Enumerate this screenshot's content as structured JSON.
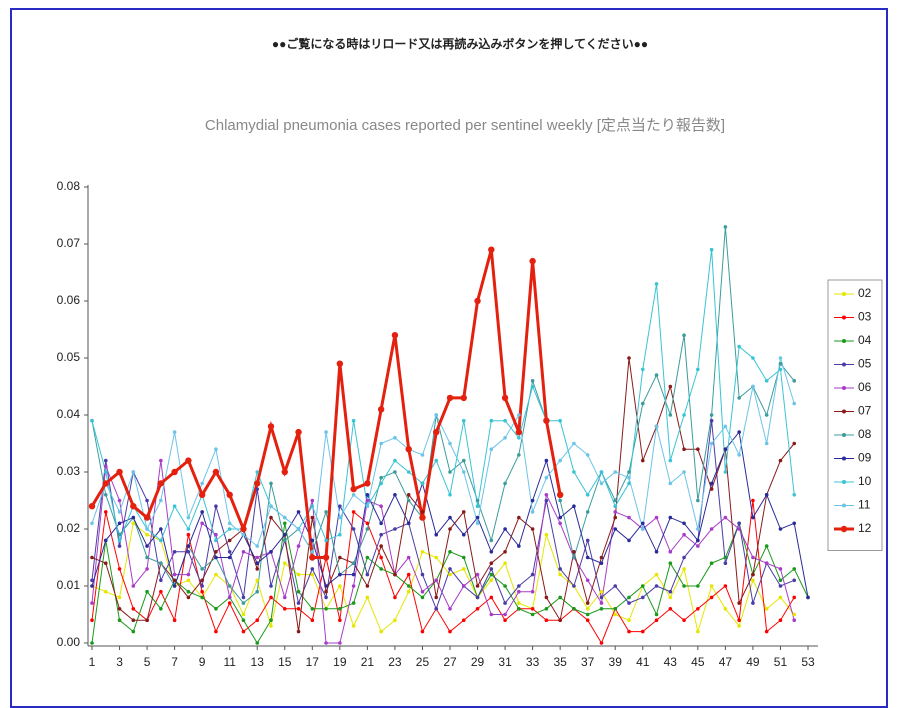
{
  "header": {
    "notice": "●●ご覧になる時はリロード又は再読み込みボタンを押してください●●"
  },
  "chart_data": {
    "type": "line",
    "title": "Chlamydial pneumonia cases reported per sentinel weekly [定点当たり報告数]",
    "x": [
      1,
      2,
      3,
      4,
      5,
      6,
      7,
      8,
      9,
      10,
      11,
      12,
      13,
      14,
      15,
      16,
      17,
      18,
      19,
      20,
      21,
      22,
      23,
      24,
      25,
      26,
      27,
      28,
      29,
      30,
      31,
      32,
      33,
      34,
      35,
      36,
      37,
      38,
      39,
      40,
      41,
      42,
      43,
      44,
      45,
      46,
      47,
      48,
      49,
      50,
      51,
      52,
      53
    ],
    "xlim": [
      1,
      53
    ],
    "xticks": [
      1,
      3,
      5,
      7,
      9,
      11,
      13,
      15,
      17,
      19,
      21,
      23,
      25,
      27,
      29,
      31,
      33,
      35,
      37,
      39,
      41,
      43,
      45,
      47,
      49,
      51,
      53
    ],
    "ylim": [
      0,
      0.08
    ],
    "yticks": [
      {
        "value": 0,
        "label": "0.00"
      },
      {
        "value": 0.01,
        "label": "0.01"
      },
      {
        "value": 0.02,
        "label": "0.02"
      },
      {
        "value": 0.03,
        "label": "0.03"
      },
      {
        "value": 0.04,
        "label": "0.04"
      },
      {
        "value": 0.05,
        "label": "0.05"
      },
      {
        "value": 0.06,
        "label": "0.06"
      },
      {
        "value": 0.07,
        "label": "0.07"
      },
      {
        "value": 0.08,
        "label": "0.08"
      }
    ],
    "grid": false,
    "legend": "right",
    "series": [
      {
        "name": "02",
        "color": "#e6e600",
        "values": [
          0.01,
          0.009,
          0.008,
          0.021,
          0.019,
          0.018,
          0.01,
          0.011,
          0.008,
          0.012,
          0.01,
          0.005,
          0.011,
          0.003,
          0.014,
          0.012,
          0.012,
          0.006,
          0.01,
          0.003,
          0.008,
          0.002,
          0.004,
          0.009,
          0.016,
          0.015,
          0.012,
          0.013,
          0.008,
          0.011,
          0.014,
          0.007,
          0.006,
          0.019,
          0.012,
          0.01,
          0.006,
          0.009,
          0.005,
          0.004,
          0.01,
          0.012,
          0.008,
          0.013,
          0.002,
          0.01,
          0.006,
          0.003,
          0.011,
          0.006,
          0.008,
          0.005,
          null
        ]
      },
      {
        "name": "03",
        "color": "#ff0000",
        "values": [
          0.004,
          0.023,
          0.013,
          0.006,
          0.004,
          0.009,
          0.004,
          0.019,
          0.009,
          0.002,
          0.007,
          0.002,
          0.004,
          0.008,
          0.006,
          0.006,
          0.004,
          0.015,
          0.004,
          0.023,
          0.021,
          0.015,
          0.008,
          0.012,
          0.002,
          0.006,
          0.002,
          0.004,
          0.006,
          0.008,
          0.004,
          0.006,
          0.006,
          0.004,
          0.004,
          0.006,
          0.004,
          0.0,
          0.006,
          0.002,
          0.002,
          0.004,
          0.006,
          0.004,
          0.006,
          0.008,
          0.01,
          0.004,
          0.025,
          0.002,
          0.004,
          0.008,
          null
        ]
      },
      {
        "name": "04",
        "color": "#1a9a1a",
        "values": [
          0.0,
          0.018,
          0.004,
          0.002,
          0.009,
          0.006,
          0.011,
          0.009,
          0.008,
          0.006,
          0.008,
          0.004,
          0.0,
          0.004,
          0.021,
          0.009,
          0.006,
          0.006,
          0.006,
          0.007,
          0.015,
          0.013,
          0.012,
          0.01,
          0.008,
          0.011,
          0.016,
          0.015,
          0.008,
          0.012,
          0.01,
          0.006,
          0.005,
          0.006,
          0.008,
          0.006,
          0.005,
          0.006,
          0.006,
          0.008,
          0.01,
          0.005,
          0.014,
          0.01,
          0.01,
          0.014,
          0.015,
          0.021,
          0.012,
          0.017,
          0.011,
          0.013,
          0.008
        ]
      },
      {
        "name": "05",
        "color": "#4a3ca8",
        "values": [
          0.011,
          0.032,
          0.017,
          0.03,
          0.025,
          0.011,
          0.016,
          0.016,
          0.01,
          0.024,
          0.016,
          0.008,
          0.027,
          0.01,
          0.018,
          0.007,
          0.013,
          0.008,
          0.024,
          0.02,
          0.012,
          0.019,
          0.02,
          0.021,
          0.012,
          0.006,
          0.013,
          0.01,
          0.008,
          0.013,
          0.007,
          0.01,
          0.012,
          0.025,
          0.013,
          0.01,
          0.018,
          0.008,
          0.01,
          0.007,
          0.008,
          0.01,
          0.009,
          0.015,
          0.018,
          0.039,
          0.014,
          0.021,
          0.007,
          0.014,
          0.01,
          0.011,
          null
        ]
      },
      {
        "name": "06",
        "color": "#a83cc8",
        "values": [
          0.007,
          0.031,
          0.025,
          0.01,
          0.013,
          0.032,
          0.012,
          0.012,
          0.021,
          0.019,
          0.008,
          0.016,
          0.015,
          0.016,
          0.008,
          0.017,
          0.025,
          0.0,
          0.0,
          0.01,
          0.025,
          0.024,
          0.012,
          0.015,
          0.009,
          0.011,
          0.006,
          0.01,
          0.012,
          0.005,
          0.005,
          0.009,
          0.009,
          0.026,
          0.021,
          0.015,
          0.011,
          0.007,
          0.023,
          0.022,
          0.02,
          0.022,
          0.016,
          0.019,
          0.017,
          0.02,
          0.022,
          0.02,
          0.015,
          0.014,
          0.013,
          0.004,
          null
        ]
      },
      {
        "name": "07",
        "color": "#8a1a1a",
        "values": [
          0.015,
          0.014,
          0.006,
          0.004,
          0.004,
          0.014,
          0.011,
          0.008,
          0.011,
          0.016,
          0.018,
          0.02,
          0.013,
          0.022,
          0.019,
          0.002,
          0.022,
          0.009,
          0.015,
          0.014,
          0.01,
          0.017,
          0.012,
          0.026,
          0.023,
          0.008,
          0.02,
          0.023,
          0.01,
          0.014,
          0.016,
          0.022,
          0.02,
          0.008,
          0.004,
          0.016,
          0.007,
          0.015,
          0.022,
          0.05,
          0.032,
          0.038,
          0.045,
          0.034,
          0.034,
          0.027,
          0.034,
          0.007,
          0.012,
          0.026,
          0.032,
          0.035,
          null
        ]
      },
      {
        "name": "08",
        "color": "#3c9c9c",
        "values": [
          0.039,
          0.026,
          0.019,
          0.022,
          0.015,
          0.014,
          0.01,
          0.017,
          0.013,
          0.015,
          0.01,
          0.007,
          0.009,
          0.028,
          0.018,
          0.02,
          0.016,
          0.023,
          0.012,
          0.014,
          0.02,
          0.029,
          0.03,
          0.025,
          0.022,
          0.04,
          0.03,
          0.032,
          0.025,
          0.018,
          0.028,
          0.033,
          0.046,
          0.039,
          0.025,
          0.015,
          0.023,
          0.03,
          0.025,
          0.03,
          0.042,
          0.047,
          0.04,
          0.054,
          0.025,
          0.04,
          0.073,
          0.043,
          0.045,
          0.04,
          0.049,
          0.046,
          null
        ]
      },
      {
        "name": "09",
        "color": "#2a2a9a",
        "values": [
          0.01,
          0.018,
          0.021,
          0.022,
          0.017,
          0.02,
          0.01,
          0.017,
          0.023,
          0.015,
          0.015,
          0.019,
          0.014,
          0.016,
          0.019,
          0.023,
          0.018,
          0.01,
          0.012,
          0.012,
          0.026,
          0.021,
          0.026,
          0.021,
          0.028,
          0.019,
          0.022,
          0.019,
          0.022,
          0.016,
          0.02,
          0.017,
          0.025,
          0.032,
          0.022,
          0.024,
          0.015,
          0.014,
          0.02,
          0.018,
          0.021,
          0.016,
          0.022,
          0.021,
          0.018,
          0.028,
          0.034,
          0.037,
          0.022,
          0.026,
          0.02,
          0.021,
          0.008
        ]
      },
      {
        "name": "10",
        "color": "#38c4d4",
        "values": [
          0.039,
          0.03,
          0.018,
          0.024,
          0.02,
          0.018,
          0.024,
          0.02,
          0.026,
          0.018,
          0.02,
          0.02,
          0.03,
          0.024,
          0.022,
          0.02,
          0.024,
          0.018,
          0.019,
          0.039,
          0.024,
          0.028,
          0.032,
          0.03,
          0.028,
          0.032,
          0.026,
          0.039,
          0.024,
          0.039,
          0.039,
          0.036,
          0.045,
          0.039,
          0.039,
          0.03,
          0.026,
          0.03,
          0.024,
          0.028,
          0.048,
          0.063,
          0.032,
          0.04,
          0.048,
          0.069,
          0.03,
          0.052,
          0.05,
          0.046,
          0.048,
          0.026,
          null
        ]
      },
      {
        "name": "11",
        "color": "#6cc4e8",
        "values": [
          0.021,
          0.028,
          0.023,
          0.03,
          0.02,
          0.025,
          0.037,
          0.022,
          0.028,
          0.034,
          0.021,
          0.019,
          0.017,
          0.024,
          0.022,
          0.02,
          0.016,
          0.037,
          0.022,
          0.026,
          0.024,
          0.035,
          0.036,
          0.034,
          0.033,
          0.04,
          0.035,
          0.03,
          0.021,
          0.034,
          0.036,
          0.04,
          0.023,
          0.029,
          0.032,
          0.035,
          0.033,
          0.028,
          0.03,
          0.029,
          0.02,
          0.038,
          0.028,
          0.03,
          0.02,
          0.035,
          0.038,
          0.033,
          0.045,
          0.035,
          0.05,
          0.042,
          null
        ]
      },
      {
        "name": "12",
        "color": "#e4200e",
        "values": [
          0.024,
          0.028,
          0.03,
          0.024,
          0.022,
          0.028,
          0.03,
          0.032,
          0.026,
          0.03,
          0.026,
          0.02,
          0.028,
          0.038,
          0.03,
          0.037,
          0.015,
          0.015,
          0.049,
          0.027,
          0.028,
          0.041,
          0.054,
          0.034,
          0.022,
          0.037,
          0.043,
          0.043,
          0.06,
          0.069,
          0.043,
          0.037,
          0.067,
          0.039,
          0.026,
          null,
          null,
          null,
          null,
          null,
          null,
          null,
          null,
          null,
          null,
          null,
          null,
          null,
          null,
          null,
          null,
          null,
          null
        ]
      }
    ]
  }
}
